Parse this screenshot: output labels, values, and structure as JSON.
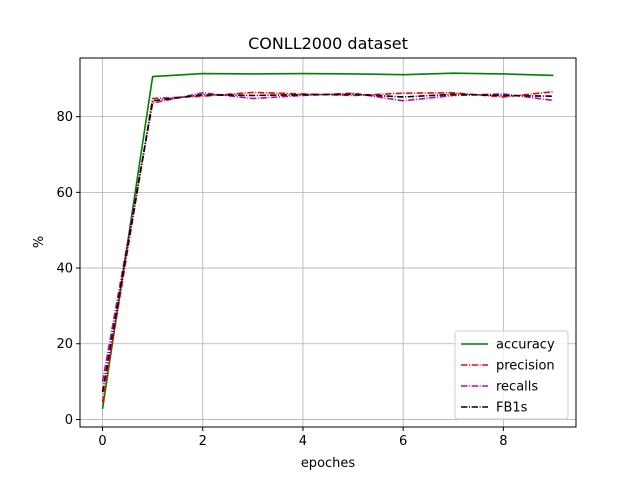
{
  "chart_data": {
    "type": "line",
    "title": "CONLL2000 dataset",
    "xlabel": "epoches",
    "ylabel": "%",
    "xlim": [
      -0.45,
      9.45
    ],
    "ylim": [
      -2.0,
      95.5
    ],
    "xticks": [
      0,
      2,
      4,
      6,
      8
    ],
    "yticks": [
      0,
      20,
      40,
      60,
      80
    ],
    "grid": true,
    "legend_position": "lower right",
    "x": [
      0,
      1,
      2,
      3,
      4,
      5,
      6,
      7,
      8,
      9
    ],
    "series": [
      {
        "name": "accuracy",
        "color": "#008000",
        "dash": "solid",
        "values": [
          2.8,
          90.6,
          91.4,
          91.3,
          91.4,
          91.3,
          91.1,
          91.5,
          91.3,
          90.9
        ]
      },
      {
        "name": "precision",
        "color": "#ff0000",
        "dash": "dashdot",
        "values": [
          4.5,
          84.8,
          85.4,
          86.4,
          86.0,
          85.6,
          86.2,
          86.3,
          85.2,
          86.6
        ]
      },
      {
        "name": "recalls",
        "color": "#bf00bf",
        "dash": "dashdot",
        "values": [
          10.0,
          83.6,
          86.3,
          84.8,
          85.6,
          86.2,
          84.2,
          85.6,
          86.0,
          84.3
        ]
      },
      {
        "name": "FB1s",
        "color": "#000000",
        "dash": "dashdot",
        "values": [
          7.2,
          84.2,
          85.8,
          85.6,
          85.8,
          85.9,
          85.2,
          85.9,
          85.6,
          85.4
        ]
      }
    ]
  }
}
